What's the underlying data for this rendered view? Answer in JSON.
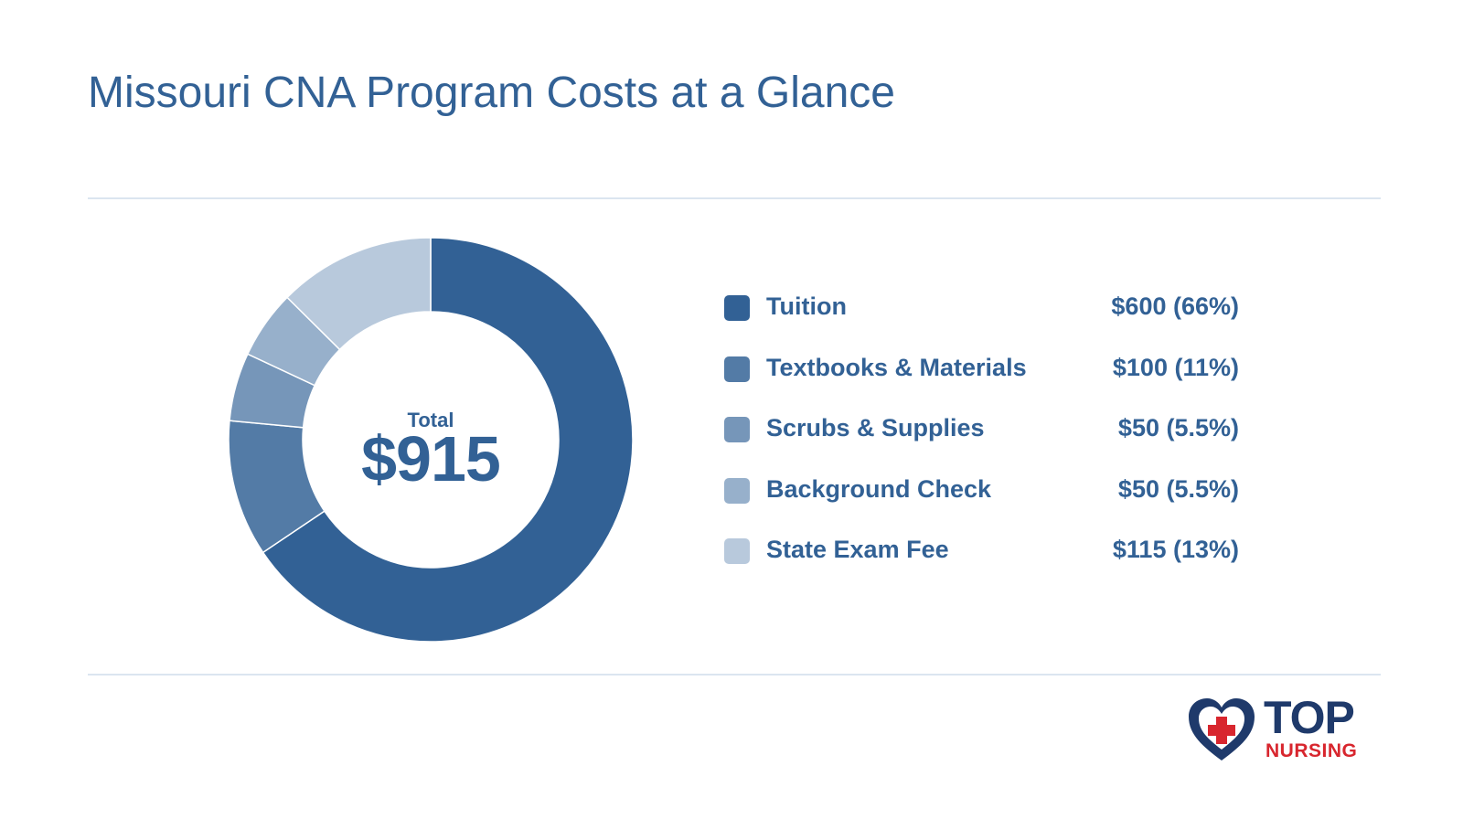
{
  "title": "Missouri CNA Program Costs at a Glance",
  "center": {
    "label": "Total",
    "value": "$915"
  },
  "logo": {
    "line1": "TOP",
    "line2": "NURSING"
  },
  "chart_data": {
    "type": "pie",
    "variant": "donut",
    "title": "Missouri CNA Program Costs at a Glance",
    "total": 915,
    "slices": [
      {
        "label": "Tuition",
        "value": 600,
        "display": "$600 (66%)",
        "color": "#326195"
      },
      {
        "label": "Textbooks & Materials",
        "value": 100,
        "display": "$100 (11%)",
        "color": "#537ba6"
      },
      {
        "label": "Scrubs & Supplies",
        "value": 50,
        "display": "$50 (5.5%)",
        "color": "#7696b9"
      },
      {
        "label": "Background Check",
        "value": 50,
        "display": "$50 (5.5%)",
        "color": "#97b0cb"
      },
      {
        "label": "State Exam Fee",
        "value": 115,
        "display": "$115 (13%)",
        "color": "#b8c9dc"
      }
    ],
    "legend_position": "right"
  }
}
